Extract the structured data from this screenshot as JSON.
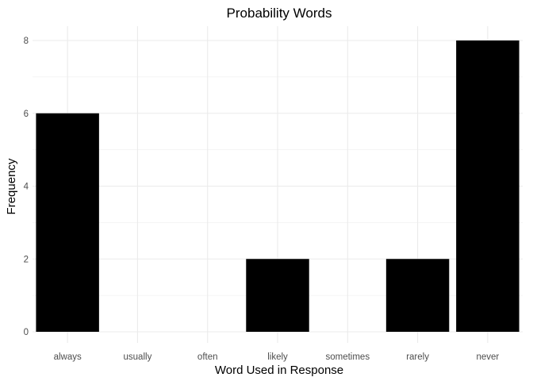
{
  "chart_data": {
    "type": "bar",
    "title": "Probability Words",
    "xlabel": "Word Used in Response",
    "ylabel": "Frequency",
    "categories": [
      "always",
      "usually",
      "often",
      "likely",
      "sometimes",
      "rarely",
      "never"
    ],
    "values": [
      6,
      0,
      0,
      2,
      0,
      2,
      8
    ],
    "yticks": [
      0,
      2,
      4,
      6,
      8
    ],
    "ylim": [
      0,
      8.4
    ],
    "grid": true,
    "bar_color": "#000000",
    "grid_color": "#ebebeb"
  }
}
